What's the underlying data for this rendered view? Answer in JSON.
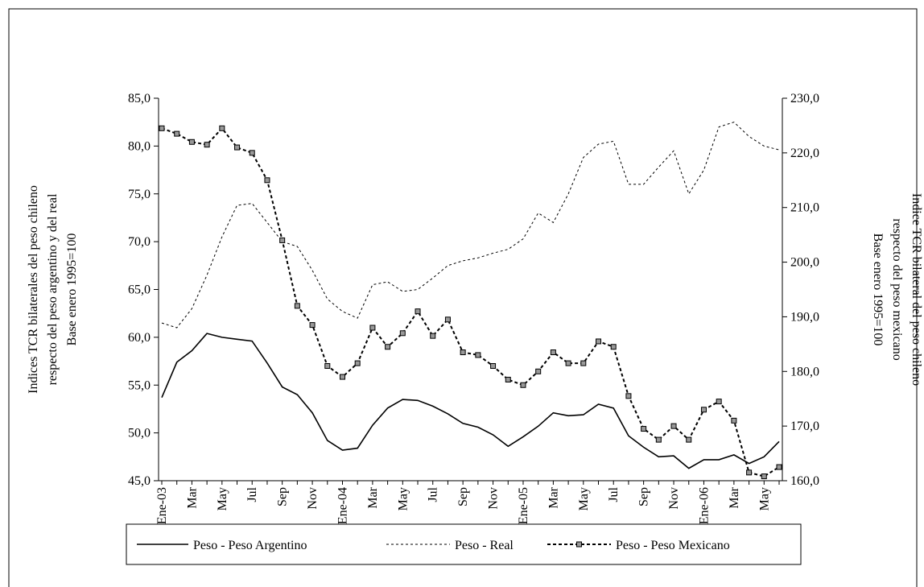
{
  "chart_data": {
    "type": "line",
    "ylabel": [
      "Indices TCR bilaterales del peso chileno",
      "respecto del peso argentino y del real",
      "Base enero 1995=100"
    ],
    "y2label": [
      "Indice TCR bilateral del peso chileno",
      "respecto del peso mexicano",
      "Base enero 1995=100"
    ],
    "categories": [
      "Ene-03",
      null,
      "Mar",
      null,
      "May",
      null,
      "Jul",
      null,
      "Sep",
      null,
      "Nov",
      null,
      "Ene-04",
      null,
      "Mar",
      null,
      "May",
      null,
      "Jul",
      null,
      "Sep",
      null,
      "Nov",
      null,
      "Ene-05",
      null,
      "Mar",
      null,
      "May",
      null,
      "Jul",
      null,
      "Sep",
      null,
      "Nov",
      null,
      "Ene-06",
      null,
      "Mar",
      null,
      "May",
      null
    ],
    "ylim": [
      45,
      85
    ],
    "yticks": [
      {
        "value": 45,
        "label": "45,0"
      },
      {
        "value": 50,
        "label": "50,0"
      },
      {
        "value": 55,
        "label": "55,0"
      },
      {
        "value": 60,
        "label": "60,0"
      },
      {
        "value": 65,
        "label": "65,0"
      },
      {
        "value": 70,
        "label": "70,0"
      },
      {
        "value": 75,
        "label": "75,0"
      },
      {
        "value": 80,
        "label": "80,0"
      },
      {
        "value": 85,
        "label": "85,0"
      }
    ],
    "y2lim": [
      160,
      230
    ],
    "y2ticks": [
      {
        "value": 160,
        "label": "160,0"
      },
      {
        "value": 170,
        "label": "170,0"
      },
      {
        "value": 180,
        "label": "180,0"
      },
      {
        "value": 190,
        "label": "190,0"
      },
      {
        "value": 200,
        "label": "200,0"
      },
      {
        "value": 210,
        "label": "210,0"
      },
      {
        "value": 220,
        "label": "220,0"
      },
      {
        "value": 230,
        "label": "230,0"
      }
    ],
    "legend": "bottom",
    "series": [
      {
        "name": "Peso - Peso Argentino",
        "color": "#000000",
        "style": "solid",
        "values": [
          53.7,
          57.4,
          58.6,
          60.4,
          60.0,
          59.8,
          59.6,
          57.3,
          54.8,
          54.0,
          52.1,
          49.2,
          48.2,
          48.4,
          50.8,
          52.6,
          53.5,
          53.4,
          52.8,
          52.0,
          51.0,
          50.6,
          49.8,
          48.6,
          49.6,
          50.7,
          52.1,
          51.8,
          51.9,
          53.0,
          52.6,
          49.7,
          48.5,
          47.5,
          47.6,
          46.3,
          47.2,
          47.2,
          47.7,
          46.8,
          47.5,
          49.1
        ]
      },
      {
        "name": "Peso - Real",
        "color": "#000000",
        "style": "dashed",
        "values": [
          61.5,
          61.0,
          63.0,
          66.5,
          70.5,
          73.8,
          74.0,
          72.0,
          70.0,
          69.5,
          67.0,
          64.0,
          62.7,
          62.0,
          65.5,
          65.8,
          64.8,
          65.0,
          66.2,
          67.5,
          68.0,
          68.3,
          68.8,
          69.2,
          70.3,
          73.0,
          72.0,
          75.0,
          78.8,
          80.2,
          80.5,
          76.0,
          76.0,
          77.8,
          79.5,
          75.0,
          77.5,
          82.0,
          82.5,
          81.0,
          80.0,
          79.6
        ]
      },
      {
        "name": "Peso - Peso Mexicano",
        "color": "#000000",
        "style": "dashed-marker",
        "axis": "y2",
        "values": [
          224.5,
          223.5,
          222.0,
          221.5,
          224.5,
          221.0,
          220.0,
          215.0,
          204.0,
          192.0,
          188.5,
          181.0,
          179.0,
          181.5,
          188.0,
          184.5,
          187.0,
          191.0,
          186.5,
          189.5,
          183.5,
          183.0,
          181.0,
          178.5,
          177.5,
          180.0,
          183.5,
          181.5,
          181.5,
          185.5,
          184.5,
          175.5,
          169.5,
          167.5,
          170.0,
          167.5,
          173.0,
          174.5,
          171.0,
          161.5,
          160.8,
          162.5
        ]
      }
    ]
  }
}
